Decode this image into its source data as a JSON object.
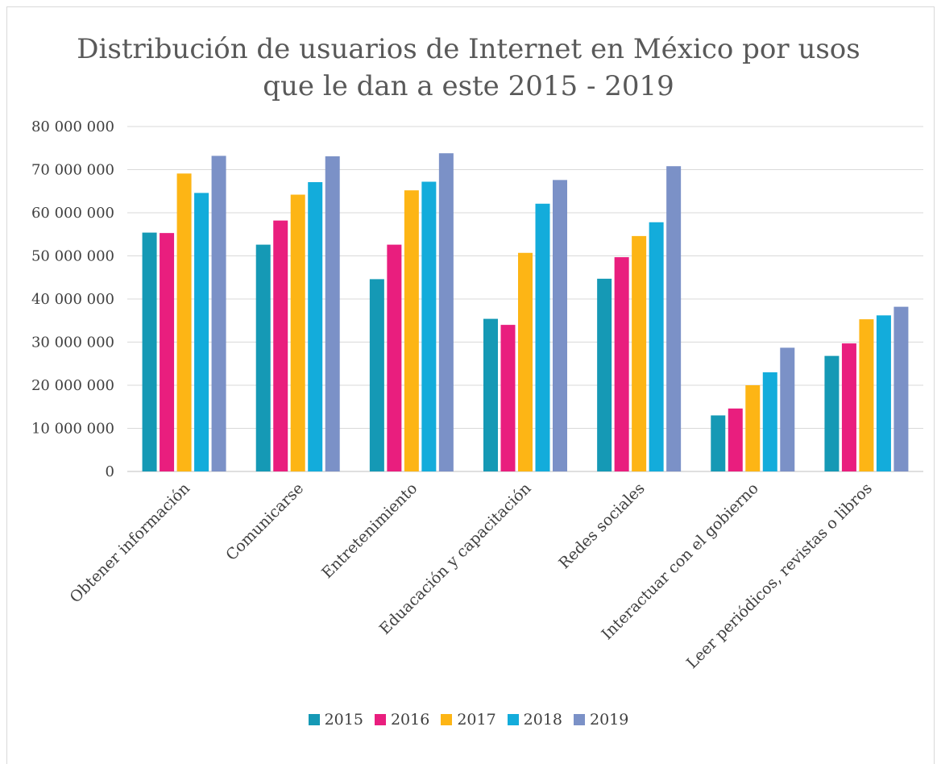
{
  "chart_data": {
    "type": "bar",
    "title_lines": [
      "Distribución de usuarios de Internet en México por usos",
      "que le dan a este 2015 - 2019"
    ],
    "categories": [
      "Obtener información",
      "Comunicarse",
      "Entretenimiento",
      "Eduacación y capacitación",
      "Redes sociales",
      "Interactuar con el gobierno",
      "Leer periódicos, revistas o libros"
    ],
    "series": [
      {
        "name": "2015",
        "color": "#1599b5",
        "values": [
          55400000,
          52600000,
          44600000,
          35400000,
          44700000,
          13000000,
          26800000
        ]
      },
      {
        "name": "2016",
        "color": "#e91e7e",
        "values": [
          55300000,
          58200000,
          52600000,
          34000000,
          49700000,
          14600000,
          29700000
        ]
      },
      {
        "name": "2017",
        "color": "#fdb515",
        "values": [
          69100000,
          64200000,
          65200000,
          50700000,
          54600000,
          20000000,
          35300000
        ]
      },
      {
        "name": "2018",
        "color": "#13acdb",
        "values": [
          64600000,
          67100000,
          67200000,
          62100000,
          57800000,
          23000000,
          36200000
        ]
      },
      {
        "name": "2019",
        "color": "#7b91c7",
        "values": [
          73200000,
          73100000,
          73800000,
          67600000,
          70800000,
          28700000,
          38200000
        ]
      }
    ],
    "ylim": [
      0,
      80000000
    ],
    "yticks": [
      "0",
      "10 000 000",
      "20 000 000",
      "30 000 000",
      "40 000 000",
      "50 000 000",
      "60 000 000",
      "70 000 000",
      "80 000 000"
    ],
    "grid": true,
    "legend_position": "bottom"
  }
}
